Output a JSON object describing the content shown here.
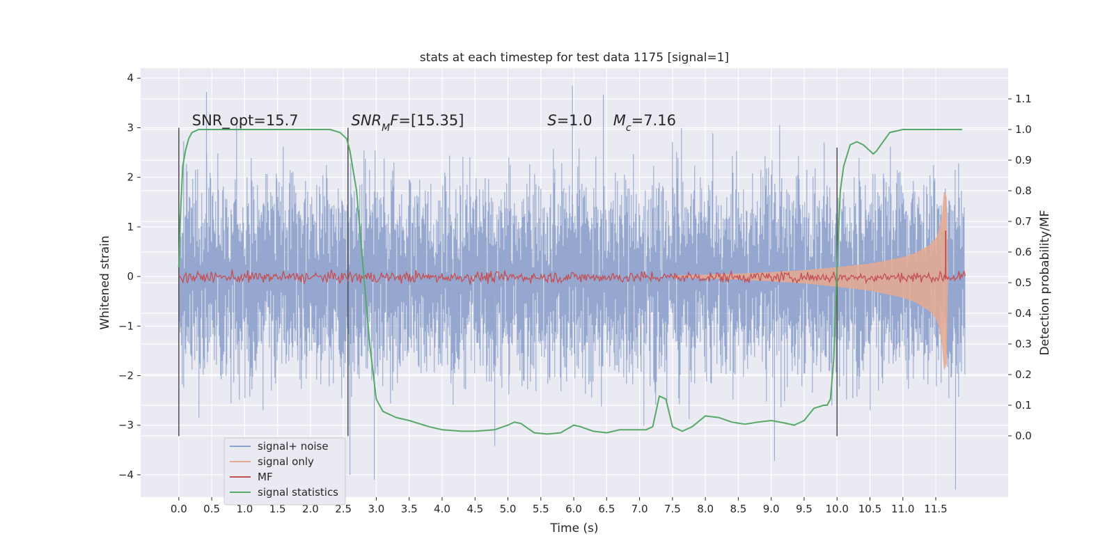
{
  "chart_data": {
    "type": "line",
    "title": "stats at each timestep for test data 1175 [signal=1]",
    "xlabel": "Time (s)",
    "ylabel_left": "Whitened strain",
    "ylabel_right": "Detection probability/MF",
    "xlim": [
      -0.58,
      12.6
    ],
    "ylim_left": [
      -4.45,
      4.2
    ],
    "ylim_right": [
      -0.2,
      1.2
    ],
    "x_ticks": [
      0.0,
      0.5,
      1.0,
      1.5,
      2.0,
      2.5,
      3.0,
      3.5,
      4.0,
      4.5,
      5.0,
      5.5,
      6.0,
      6.5,
      7.0,
      7.5,
      8.0,
      8.5,
      9.0,
      9.5,
      10.0,
      10.5,
      11.0,
      11.5
    ],
    "x_tick_labels": [
      "0.0",
      "0.5",
      "1.0",
      "1.5",
      "2.0",
      "2.5",
      "3.0",
      "3.5",
      "4.0",
      "4.5",
      "5.0",
      "5.5",
      "6.0",
      "6.5",
      "7.0",
      "7.5",
      "8.0",
      "8.5",
      "9.0",
      "9.5",
      "10.0",
      "10.5",
      "11.0",
      "11.5"
    ],
    "y_left_ticks": [
      -4,
      -3,
      -2,
      -1,
      0,
      1,
      2,
      3,
      4
    ],
    "y_left_tick_labels": [
      "−4",
      "−3",
      "−2",
      "−1",
      "0",
      "1",
      "2",
      "3",
      "4"
    ],
    "y_right_ticks": [
      0.0,
      0.1,
      0.2,
      0.3,
      0.4,
      0.5,
      0.6,
      0.7,
      0.8,
      0.9,
      1.0,
      1.1
    ],
    "y_right_tick_labels": [
      "0.0",
      "0.1",
      "0.2",
      "0.3",
      "0.4",
      "0.5",
      "0.6",
      "0.7",
      "0.8",
      "0.9",
      "1.0",
      "1.1"
    ],
    "grid": true,
    "legend_location": "lower-left",
    "annotations": [
      {
        "text": "SNR_opt=15.7",
        "x": 0.2,
        "y": 3.05
      },
      {
        "text": "SNR_MF=[15.35]",
        "x": 2.62,
        "y": 3.05
      },
      {
        "text": "S=1.0",
        "x": 5.6,
        "y": 3.05
      },
      {
        "text": "M_c=7.16",
        "x": 6.6,
        "y": 3.05
      }
    ],
    "vertical_markers": [
      {
        "x": 0.0,
        "y_range": [
          -3.22,
          3.0
        ]
      },
      {
        "x": 2.57,
        "y_range": [
          -3.22,
          3.0
        ]
      },
      {
        "x": 10.0,
        "y_range": [
          -3.22,
          2.6
        ]
      }
    ],
    "series": [
      {
        "name": "signal+ noise",
        "axis": "left",
        "color": "#8da0cb",
        "description": "whitened strain, noise-dominated, approx. ±2.5 with peaks to about ±4",
        "x_range": [
          0.0,
          11.95
        ],
        "envelope_p95": 2.0,
        "extreme_peaks": [
          [
            0.42,
            3.72
          ],
          [
            5.98,
            3.85
          ],
          [
            6.45,
            3.67
          ],
          [
            2.6,
            -4.0
          ],
          [
            2.97,
            -4.1
          ],
          [
            11.8,
            -4.3
          ],
          [
            4.8,
            -3.42
          ],
          [
            9.05,
            -3.72
          ]
        ]
      },
      {
        "name": "signal only",
        "axis": "left",
        "color": "#e5a990",
        "description": "chirp waveform envelope growing toward merger",
        "x": [
          7.5,
          8.0,
          8.5,
          9.0,
          9.5,
          10.0,
          10.5,
          11.0,
          11.2,
          11.4,
          11.5,
          11.55,
          11.6,
          11.63,
          11.66,
          11.68
        ],
        "amplitude": [
          0.01,
          0.03,
          0.05,
          0.08,
          0.12,
          0.18,
          0.25,
          0.38,
          0.47,
          0.62,
          0.75,
          0.9,
          1.25,
          1.7,
          1.6,
          0.0
        ]
      },
      {
        "name": "MF",
        "axis": "right",
        "color": "#c44e52",
        "description": "matched filter statistic, approx. 0.52 with small noise; spike near merger",
        "baseline": 0.518,
        "noise_amplitude": 0.015,
        "x_range": [
          0.0,
          11.95
        ],
        "spike": {
          "x": 11.65,
          "y": 0.67
        }
      },
      {
        "name": "signal statistics",
        "axis": "right",
        "color": "#55a868",
        "x": [
          0.0,
          0.03,
          0.06,
          0.1,
          0.15,
          0.2,
          0.3,
          0.5,
          1.0,
          1.5,
          2.0,
          2.3,
          2.45,
          2.55,
          2.6,
          2.7,
          2.8,
          2.9,
          3.0,
          3.1,
          3.3,
          3.5,
          3.8,
          4.0,
          4.3,
          4.5,
          4.8,
          5.0,
          5.1,
          5.2,
          5.4,
          5.6,
          5.8,
          6.0,
          6.1,
          6.3,
          6.5,
          6.7,
          6.9,
          7.1,
          7.2,
          7.3,
          7.4,
          7.5,
          7.65,
          7.8,
          8.0,
          8.2,
          8.4,
          8.6,
          8.8,
          9.0,
          9.2,
          9.35,
          9.5,
          9.65,
          9.8,
          9.85,
          9.9,
          9.95,
          10.0,
          10.05,
          10.1,
          10.2,
          10.3,
          10.4,
          10.5,
          10.55,
          10.6,
          10.7,
          10.8,
          11.0,
          11.3,
          11.6,
          11.9
        ],
        "y": [
          0.55,
          0.75,
          0.88,
          0.93,
          0.97,
          0.99,
          1.0,
          1.0,
          1.0,
          1.0,
          1.0,
          1.0,
          0.99,
          0.97,
          0.93,
          0.8,
          0.55,
          0.3,
          0.12,
          0.08,
          0.06,
          0.05,
          0.03,
          0.02,
          0.015,
          0.015,
          0.02,
          0.035,
          0.045,
          0.04,
          0.01,
          0.006,
          0.01,
          0.035,
          0.03,
          0.015,
          0.01,
          0.02,
          0.02,
          0.02,
          0.03,
          0.13,
          0.12,
          0.03,
          0.015,
          0.03,
          0.065,
          0.06,
          0.045,
          0.038,
          0.045,
          0.05,
          0.042,
          0.035,
          0.05,
          0.09,
          0.1,
          0.1,
          0.12,
          0.25,
          0.55,
          0.8,
          0.88,
          0.95,
          0.96,
          0.95,
          0.93,
          0.92,
          0.93,
          0.96,
          0.99,
          1.0,
          1.0,
          1.0,
          1.0
        ]
      }
    ]
  },
  "legend": {
    "items": [
      {
        "label": "signal+ noise",
        "color": "#8da0cb"
      },
      {
        "label": "signal only",
        "color": "#e5a990"
      },
      {
        "label": "MF",
        "color": "#c44e52"
      },
      {
        "label": "signal statistics",
        "color": "#55a868"
      }
    ]
  },
  "colors": {
    "axes_background": "#eaeaf2",
    "grid": "#ffffff",
    "marker_line": "#4d4d4d"
  }
}
